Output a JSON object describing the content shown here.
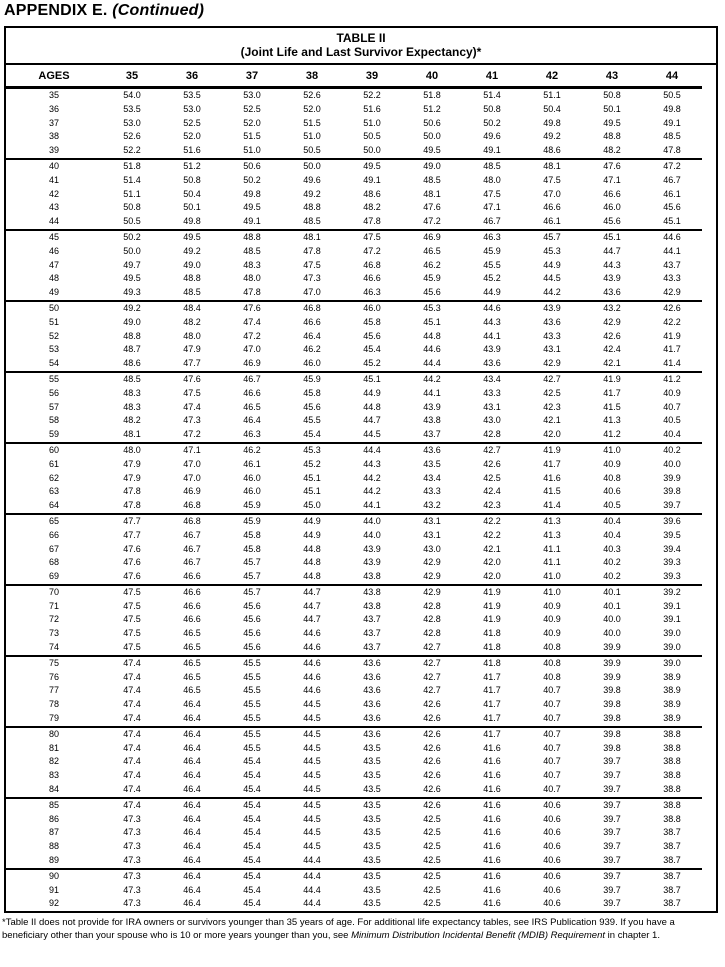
{
  "page": {
    "appendix_label": "APPENDIX E.",
    "appendix_continued": "(Continued)"
  },
  "table": {
    "title": "TABLE II",
    "subtitle": "(Joint Life and Last Survivor Expectancy)*",
    "ages_header": "AGES",
    "age_columns": [
      "35",
      "36",
      "37",
      "38",
      "39",
      "40",
      "41",
      "42",
      "43",
      "44"
    ],
    "rows": [
      {
        "age": "35",
        "values": [
          "54.0",
          "53.5",
          "53.0",
          "52.6",
          "52.2",
          "51.8",
          "51.4",
          "51.1",
          "50.8",
          "50.5"
        ]
      },
      {
        "age": "36",
        "values": [
          "53.5",
          "53.0",
          "52.5",
          "52.0",
          "51.6",
          "51.2",
          "50.8",
          "50.4",
          "50.1",
          "49.8"
        ]
      },
      {
        "age": "37",
        "values": [
          "53.0",
          "52.5",
          "52.0",
          "51.5",
          "51.0",
          "50.6",
          "50.2",
          "49.8",
          "49.5",
          "49.1"
        ]
      },
      {
        "age": "38",
        "values": [
          "52.6",
          "52.0",
          "51.5",
          "51.0",
          "50.5",
          "50.0",
          "49.6",
          "49.2",
          "48.8",
          "48.5"
        ]
      },
      {
        "age": "39",
        "values": [
          "52.2",
          "51.6",
          "51.0",
          "50.5",
          "50.0",
          "49.5",
          "49.1",
          "48.6",
          "48.2",
          "47.8"
        ]
      },
      {
        "age": "40",
        "values": [
          "51.8",
          "51.2",
          "50.6",
          "50.0",
          "49.5",
          "49.0",
          "48.5",
          "48.1",
          "47.6",
          "47.2"
        ]
      },
      {
        "age": "41",
        "values": [
          "51.4",
          "50.8",
          "50.2",
          "49.6",
          "49.1",
          "48.5",
          "48.0",
          "47.5",
          "47.1",
          "46.7"
        ]
      },
      {
        "age": "42",
        "values": [
          "51.1",
          "50.4",
          "49.8",
          "49.2",
          "48.6",
          "48.1",
          "47.5",
          "47.0",
          "46.6",
          "46.1"
        ]
      },
      {
        "age": "43",
        "values": [
          "50.8",
          "50.1",
          "49.5",
          "48.8",
          "48.2",
          "47.6",
          "47.1",
          "46.6",
          "46.0",
          "45.6"
        ]
      },
      {
        "age": "44",
        "values": [
          "50.5",
          "49.8",
          "49.1",
          "48.5",
          "47.8",
          "47.2",
          "46.7",
          "46.1",
          "45.6",
          "45.1"
        ]
      },
      {
        "age": "45",
        "values": [
          "50.2",
          "49.5",
          "48.8",
          "48.1",
          "47.5",
          "46.9",
          "46.3",
          "45.7",
          "45.1",
          "44.6"
        ]
      },
      {
        "age": "46",
        "values": [
          "50.0",
          "49.2",
          "48.5",
          "47.8",
          "47.2",
          "46.5",
          "45.9",
          "45.3",
          "44.7",
          "44.1"
        ]
      },
      {
        "age": "47",
        "values": [
          "49.7",
          "49.0",
          "48.3",
          "47.5",
          "46.8",
          "46.2",
          "45.5",
          "44.9",
          "44.3",
          "43.7"
        ]
      },
      {
        "age": "48",
        "values": [
          "49.5",
          "48.8",
          "48.0",
          "47.3",
          "46.6",
          "45.9",
          "45.2",
          "44.5",
          "43.9",
          "43.3"
        ]
      },
      {
        "age": "49",
        "values": [
          "49.3",
          "48.5",
          "47.8",
          "47.0",
          "46.3",
          "45.6",
          "44.9",
          "44.2",
          "43.6",
          "42.9"
        ]
      },
      {
        "age": "50",
        "values": [
          "49.2",
          "48.4",
          "47.6",
          "46.8",
          "46.0",
          "45.3",
          "44.6",
          "43.9",
          "43.2",
          "42.6"
        ]
      },
      {
        "age": "51",
        "values": [
          "49.0",
          "48.2",
          "47.4",
          "46.6",
          "45.8",
          "45.1",
          "44.3",
          "43.6",
          "42.9",
          "42.2"
        ]
      },
      {
        "age": "52",
        "values": [
          "48.8",
          "48.0",
          "47.2",
          "46.4",
          "45.6",
          "44.8",
          "44.1",
          "43.3",
          "42.6",
          "41.9"
        ]
      },
      {
        "age": "53",
        "values": [
          "48.7",
          "47.9",
          "47.0",
          "46.2",
          "45.4",
          "44.6",
          "43.9",
          "43.1",
          "42.4",
          "41.7"
        ]
      },
      {
        "age": "54",
        "values": [
          "48.6",
          "47.7",
          "46.9",
          "46.0",
          "45.2",
          "44.4",
          "43.6",
          "42.9",
          "42.1",
          "41.4"
        ]
      },
      {
        "age": "55",
        "values": [
          "48.5",
          "47.6",
          "46.7",
          "45.9",
          "45.1",
          "44.2",
          "43.4",
          "42.7",
          "41.9",
          "41.2"
        ]
      },
      {
        "age": "56",
        "values": [
          "48.3",
          "47.5",
          "46.6",
          "45.8",
          "44.9",
          "44.1",
          "43.3",
          "42.5",
          "41.7",
          "40.9"
        ]
      },
      {
        "age": "57",
        "values": [
          "48.3",
          "47.4",
          "46.5",
          "45.6",
          "44.8",
          "43.9",
          "43.1",
          "42.3",
          "41.5",
          "40.7"
        ]
      },
      {
        "age": "58",
        "values": [
          "48.2",
          "47.3",
          "46.4",
          "45.5",
          "44.7",
          "43.8",
          "43.0",
          "42.1",
          "41.3",
          "40.5"
        ]
      },
      {
        "age": "59",
        "values": [
          "48.1",
          "47.2",
          "46.3",
          "45.4",
          "44.5",
          "43.7",
          "42.8",
          "42.0",
          "41.2",
          "40.4"
        ]
      },
      {
        "age": "60",
        "values": [
          "48.0",
          "47.1",
          "46.2",
          "45.3",
          "44.4",
          "43.6",
          "42.7",
          "41.9",
          "41.0",
          "40.2"
        ]
      },
      {
        "age": "61",
        "values": [
          "47.9",
          "47.0",
          "46.1",
          "45.2",
          "44.3",
          "43.5",
          "42.6",
          "41.7",
          "40.9",
          "40.0"
        ]
      },
      {
        "age": "62",
        "values": [
          "47.9",
          "47.0",
          "46.0",
          "45.1",
          "44.2",
          "43.4",
          "42.5",
          "41.6",
          "40.8",
          "39.9"
        ]
      },
      {
        "age": "63",
        "values": [
          "47.8",
          "46.9",
          "46.0",
          "45.1",
          "44.2",
          "43.3",
          "42.4",
          "41.5",
          "40.6",
          "39.8"
        ]
      },
      {
        "age": "64",
        "values": [
          "47.8",
          "46.8",
          "45.9",
          "45.0",
          "44.1",
          "43.2",
          "42.3",
          "41.4",
          "40.5",
          "39.7"
        ]
      },
      {
        "age": "65",
        "values": [
          "47.7",
          "46.8",
          "45.9",
          "44.9",
          "44.0",
          "43.1",
          "42.2",
          "41.3",
          "40.4",
          "39.6"
        ]
      },
      {
        "age": "66",
        "values": [
          "47.7",
          "46.7",
          "45.8",
          "44.9",
          "44.0",
          "43.1",
          "42.2",
          "41.3",
          "40.4",
          "39.5"
        ]
      },
      {
        "age": "67",
        "values": [
          "47.6",
          "46.7",
          "45.8",
          "44.8",
          "43.9",
          "43.0",
          "42.1",
          "41.1",
          "40.3",
          "39.4"
        ]
      },
      {
        "age": "68",
        "values": [
          "47.6",
          "46.7",
          "45.7",
          "44.8",
          "43.9",
          "42.9",
          "42.0",
          "41.1",
          "40.2",
          "39.3"
        ]
      },
      {
        "age": "69",
        "values": [
          "47.6",
          "46.6",
          "45.7",
          "44.8",
          "43.8",
          "42.9",
          "42.0",
          "41.0",
          "40.2",
          "39.3"
        ]
      },
      {
        "age": "70",
        "values": [
          "47.5",
          "46.6",
          "45.7",
          "44.7",
          "43.8",
          "42.9",
          "41.9",
          "41.0",
          "40.1",
          "39.2"
        ]
      },
      {
        "age": "71",
        "values": [
          "47.5",
          "46.6",
          "45.6",
          "44.7",
          "43.8",
          "42.8",
          "41.9",
          "40.9",
          "40.1",
          "39.1"
        ]
      },
      {
        "age": "72",
        "values": [
          "47.5",
          "46.6",
          "45.6",
          "44.7",
          "43.7",
          "42.8",
          "41.9",
          "40.9",
          "40.0",
          "39.1"
        ]
      },
      {
        "age": "73",
        "values": [
          "47.5",
          "46.5",
          "45.6",
          "44.6",
          "43.7",
          "42.8",
          "41.8",
          "40.9",
          "40.0",
          "39.0"
        ]
      },
      {
        "age": "74",
        "values": [
          "47.5",
          "46.5",
          "45.6",
          "44.6",
          "43.7",
          "42.7",
          "41.8",
          "40.8",
          "39.9",
          "39.0"
        ]
      },
      {
        "age": "75",
        "values": [
          "47.4",
          "46.5",
          "45.5",
          "44.6",
          "43.6",
          "42.7",
          "41.8",
          "40.8",
          "39.9",
          "39.0"
        ]
      },
      {
        "age": "76",
        "values": [
          "47.4",
          "46.5",
          "45.5",
          "44.6",
          "43.6",
          "42.7",
          "41.7",
          "40.8",
          "39.9",
          "38.9"
        ]
      },
      {
        "age": "77",
        "values": [
          "47.4",
          "46.5",
          "45.5",
          "44.6",
          "43.6",
          "42.7",
          "41.7",
          "40.7",
          "39.8",
          "38.9"
        ]
      },
      {
        "age": "78",
        "values": [
          "47.4",
          "46.4",
          "45.5",
          "44.5",
          "43.6",
          "42.6",
          "41.7",
          "40.7",
          "39.8",
          "38.9"
        ]
      },
      {
        "age": "79",
        "values": [
          "47.4",
          "46.4",
          "45.5",
          "44.5",
          "43.6",
          "42.6",
          "41.7",
          "40.7",
          "39.8",
          "38.9"
        ]
      },
      {
        "age": "80",
        "values": [
          "47.4",
          "46.4",
          "45.5",
          "44.5",
          "43.6",
          "42.6",
          "41.7",
          "40.7",
          "39.8",
          "38.8"
        ]
      },
      {
        "age": "81",
        "values": [
          "47.4",
          "46.4",
          "45.5",
          "44.5",
          "43.5",
          "42.6",
          "41.6",
          "40.7",
          "39.8",
          "38.8"
        ]
      },
      {
        "age": "82",
        "values": [
          "47.4",
          "46.4",
          "45.4",
          "44.5",
          "43.5",
          "42.6",
          "41.6",
          "40.7",
          "39.7",
          "38.8"
        ]
      },
      {
        "age": "83",
        "values": [
          "47.4",
          "46.4",
          "45.4",
          "44.5",
          "43.5",
          "42.6",
          "41.6",
          "40.7",
          "39.7",
          "38.8"
        ]
      },
      {
        "age": "84",
        "values": [
          "47.4",
          "46.4",
          "45.4",
          "44.5",
          "43.5",
          "42.6",
          "41.6",
          "40.7",
          "39.7",
          "38.8"
        ]
      },
      {
        "age": "85",
        "values": [
          "47.4",
          "46.4",
          "45.4",
          "44.5",
          "43.5",
          "42.6",
          "41.6",
          "40.6",
          "39.7",
          "38.8"
        ]
      },
      {
        "age": "86",
        "values": [
          "47.3",
          "46.4",
          "45.4",
          "44.5",
          "43.5",
          "42.5",
          "41.6",
          "40.6",
          "39.7",
          "38.8"
        ]
      },
      {
        "age": "87",
        "values": [
          "47.3",
          "46.4",
          "45.4",
          "44.5",
          "43.5",
          "42.5",
          "41.6",
          "40.6",
          "39.7",
          "38.7"
        ]
      },
      {
        "age": "88",
        "values": [
          "47.3",
          "46.4",
          "45.4",
          "44.5",
          "43.5",
          "42.5",
          "41.6",
          "40.6",
          "39.7",
          "38.7"
        ]
      },
      {
        "age": "89",
        "values": [
          "47.3",
          "46.4",
          "45.4",
          "44.4",
          "43.5",
          "42.5",
          "41.6",
          "40.6",
          "39.7",
          "38.7"
        ]
      },
      {
        "age": "90",
        "values": [
          "47.3",
          "46.4",
          "45.4",
          "44.4",
          "43.5",
          "42.5",
          "41.6",
          "40.6",
          "39.7",
          "38.7"
        ]
      },
      {
        "age": "91",
        "values": [
          "47.3",
          "46.4",
          "45.4",
          "44.4",
          "43.5",
          "42.5",
          "41.6",
          "40.6",
          "39.7",
          "38.7"
        ]
      },
      {
        "age": "92",
        "values": [
          "47.3",
          "46.4",
          "45.4",
          "44.4",
          "43.5",
          "42.5",
          "41.6",
          "40.6",
          "39.7",
          "38.7"
        ]
      }
    ]
  },
  "footnote": {
    "part1": "*Table II does not provide for IRA owners or survivors younger than 35 years of age. For additional life expectancy tables, see IRS Publication 939. If you have a beneficiary other than your spouse who is 10 or more years younger than you, see ",
    "italic": "Minimum Distribution Incidental Benefit (MDIB) Requirement",
    "part2": " in chapter 1."
  }
}
